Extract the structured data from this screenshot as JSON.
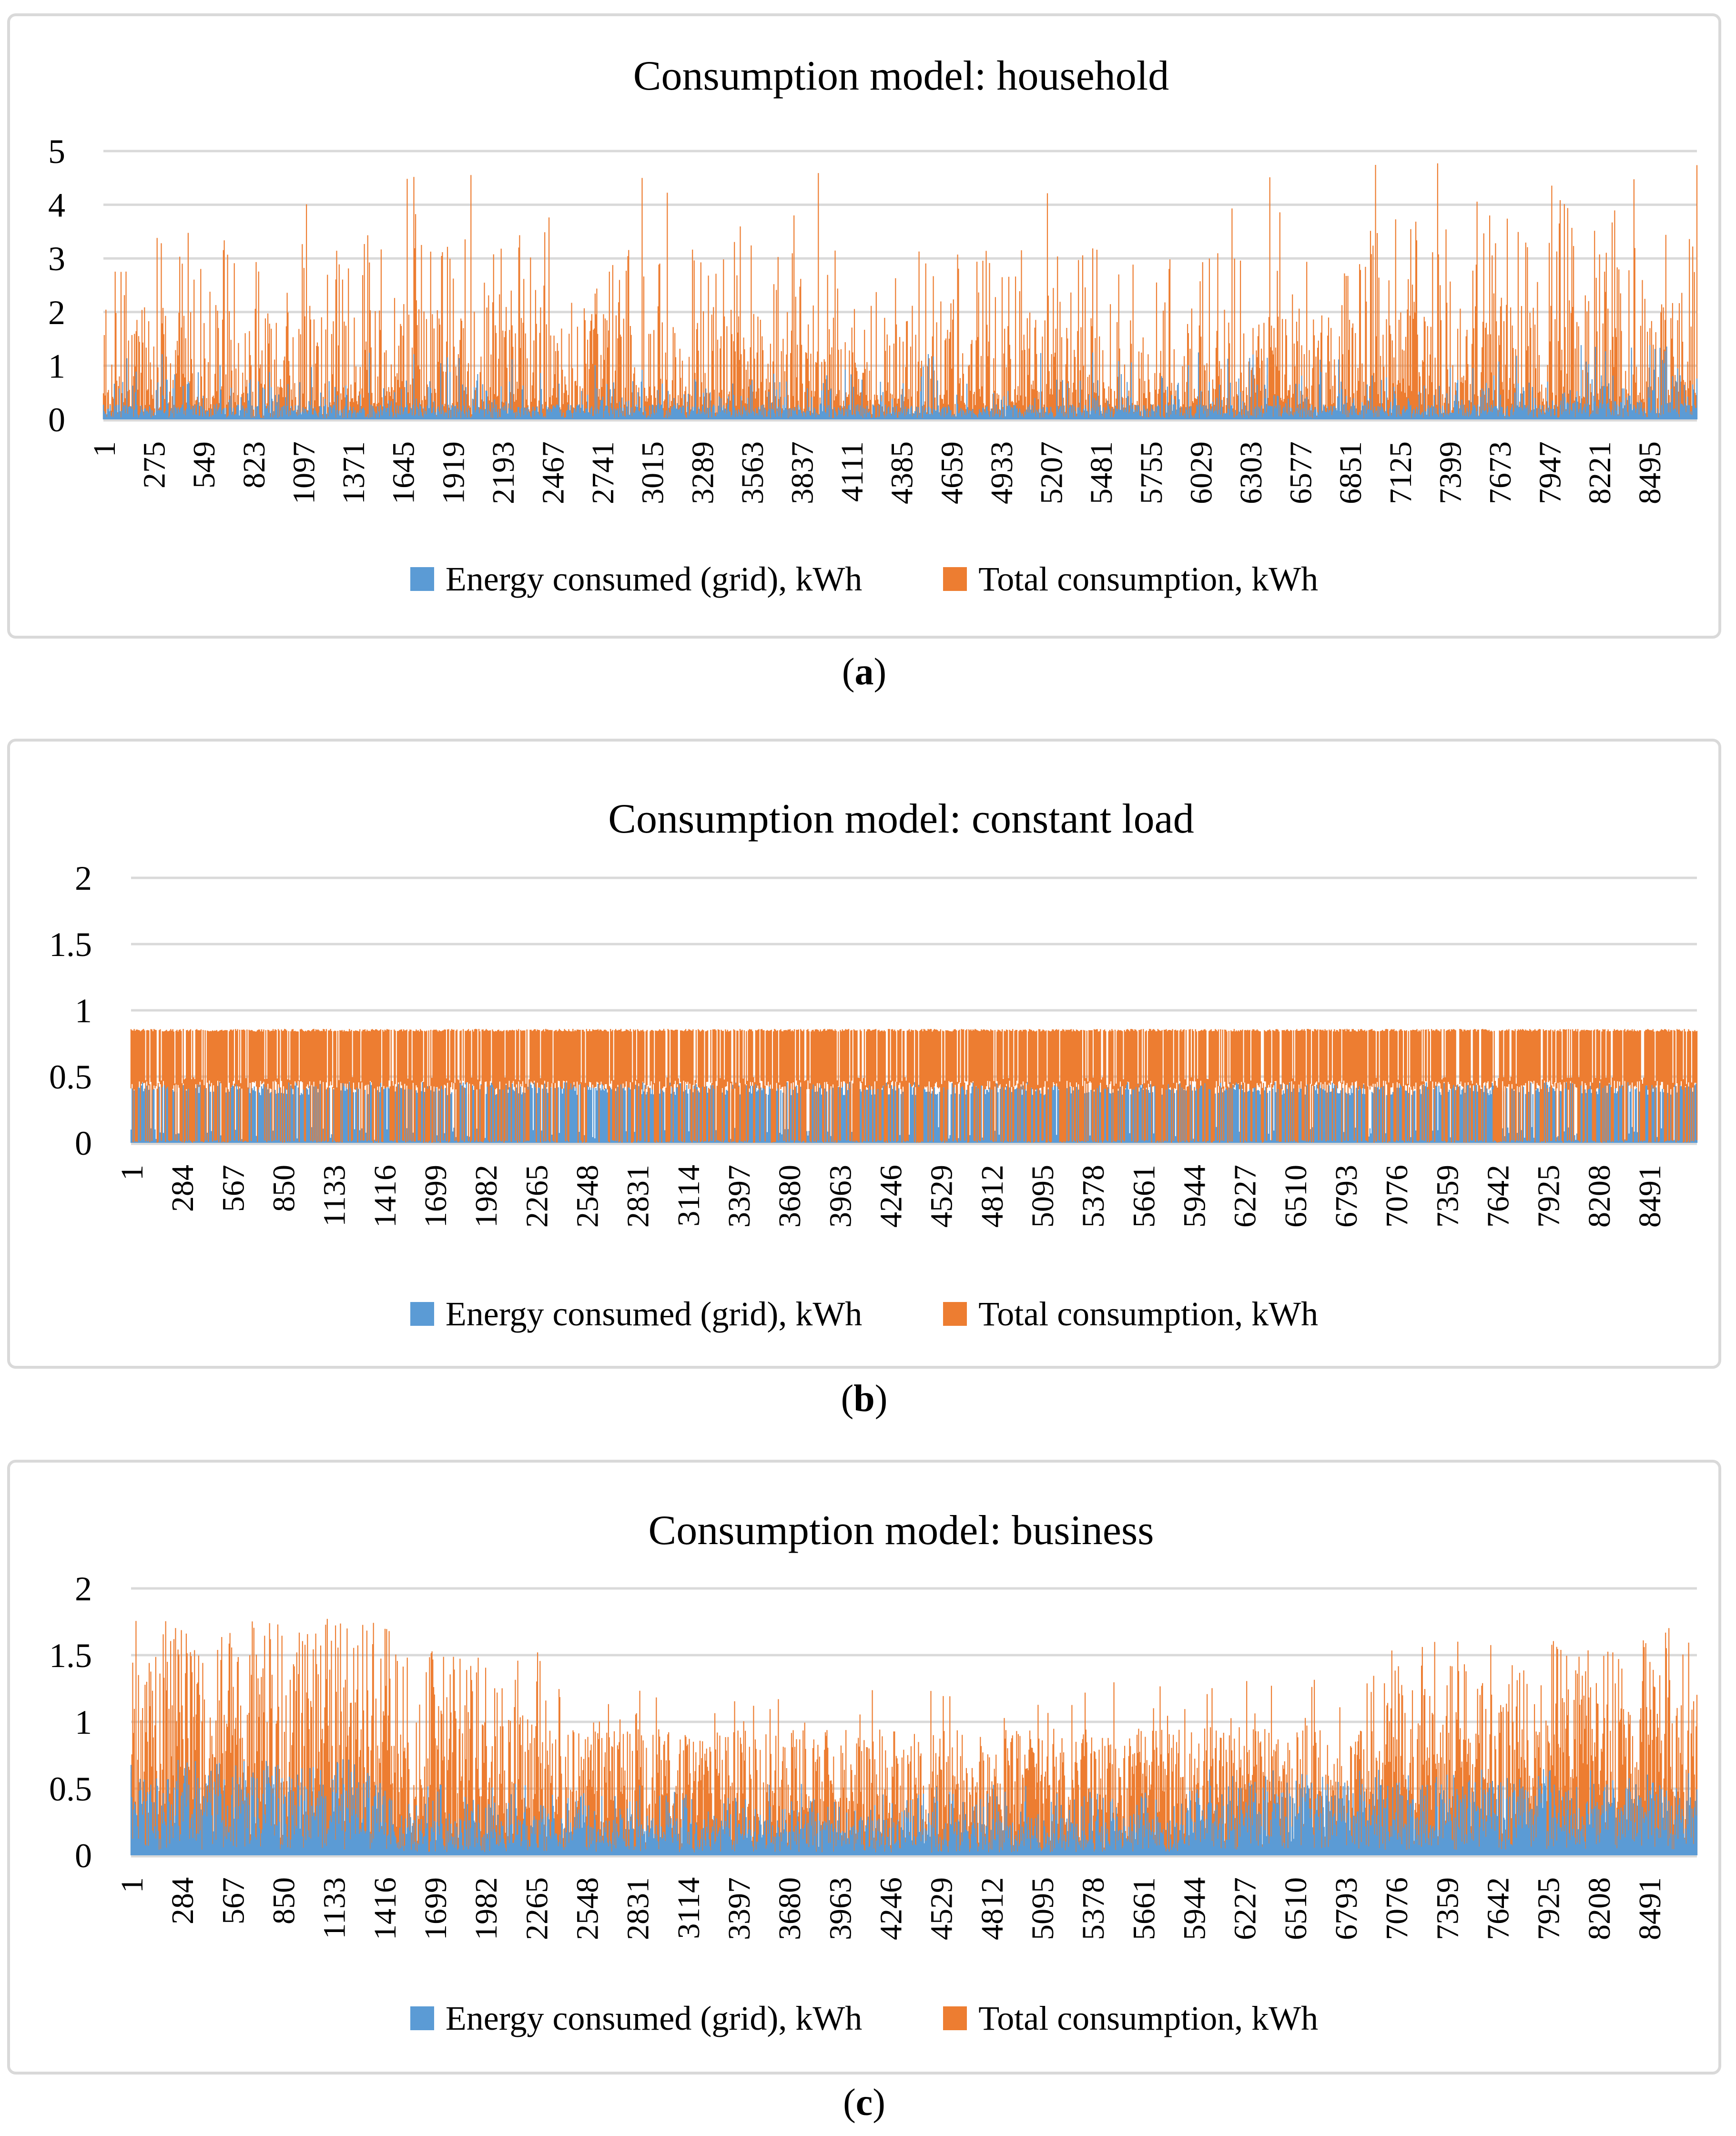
{
  "colors": {
    "blue": "#5B9BD5",
    "orange": "#ED7D31",
    "gridline": "#D9D9D9",
    "axis_line": "#D9D9D9",
    "panel_border": "#D9D9D9",
    "text": "#000000"
  },
  "legend": {
    "series1": "Energy consumed (grid), kWh",
    "series2": "Total consumption, kWh"
  },
  "chart_data": [
    {
      "type": "line",
      "title": "Consumption model: household",
      "caption_open": "(",
      "caption_letter": "a",
      "caption_close": ")",
      "x_range": [
        1,
        8760
      ],
      "x_ticks": [
        1,
        275,
        549,
        823,
        1097,
        1371,
        1645,
        1919,
        2193,
        2467,
        2741,
        3015,
        3289,
        3563,
        3837,
        4111,
        4385,
        4659,
        4933,
        5207,
        5481,
        5755,
        6029,
        6303,
        6577,
        6851,
        7125,
        7399,
        7673,
        7947,
        8221,
        8495
      ],
      "y_ticks": [
        5,
        4,
        3,
        2,
        1,
        0
      ],
      "ylim": [
        0,
        5
      ],
      "grid": true,
      "legend_position": "bottom",
      "series": [
        {
          "name": "Energy consumed (grid), kWh",
          "color_key": "blue",
          "zorder": 2,
          "seed": 202,
          "summary": "hourly grid draw: dense noise 0-0.3 kWh with spikes to 0.7-1.4 kWh, slightly higher after hour 8000",
          "pattern": {
            "n": 1900,
            "segments": [
              {
                "until": 8000,
                "bands": [
                  [
                    0.8,
                    0.02,
                    0.28
                  ],
                  [
                    0.17,
                    0.28,
                    0.75
                  ],
                  [
                    0.03,
                    0.75,
                    1.25
                  ]
                ]
              },
              {
                "until": 8760,
                "bands": [
                  [
                    0.72,
                    0.03,
                    0.35
                  ],
                  [
                    0.22,
                    0.35,
                    0.85
                  ],
                  [
                    0.06,
                    0.85,
                    1.4
                  ]
                ]
              }
            ]
          }
        },
        {
          "name": "Total consumption, kWh",
          "color_key": "orange",
          "zorder": 1,
          "seed": 101,
          "summary": "hourly total load: base 0-0.6 kWh, frequent peaks 0.6-2.2, regular peaks 2-3.6, rare maxima 3.7-5.0 kWh; tall peaks denser before hour 3600 and after hour 6900",
          "pattern": {
            "n": 1900,
            "segments": [
              {
                "until": 3600,
                "bands": [
                  [
                    0.5,
                    0.05,
                    0.62
                  ],
                  [
                    0.36,
                    0.62,
                    2.1
                  ],
                  [
                    0.125,
                    2.1,
                    3.6
                  ],
                  [
                    0.015,
                    3.7,
                    5.0
                  ]
                ]
              },
              {
                "until": 6900,
                "bands": [
                  [
                    0.54,
                    0.05,
                    0.58
                  ],
                  [
                    0.35,
                    0.58,
                    1.9
                  ],
                  [
                    0.1,
                    1.9,
                    3.2
                  ],
                  [
                    0.01,
                    3.3,
                    5.0
                  ]
                ]
              },
              {
                "until": 8760,
                "bands": [
                  [
                    0.46,
                    0.05,
                    0.7
                  ],
                  [
                    0.37,
                    0.7,
                    2.2
                  ],
                  [
                    0.15,
                    2.2,
                    3.9
                  ],
                  [
                    0.025,
                    3.9,
                    5.0
                  ]
                ]
              }
            ]
          }
        }
      ]
    },
    {
      "type": "line",
      "title": "Consumption model: constant load",
      "caption_open": "(",
      "caption_letter": "b",
      "caption_close": ")",
      "x_range": [
        1,
        8760
      ],
      "x_ticks": [
        1,
        284,
        567,
        850,
        1133,
        1416,
        1699,
        1982,
        2265,
        2548,
        2831,
        3114,
        3397,
        3680,
        3963,
        4246,
        4529,
        4812,
        5095,
        5378,
        5661,
        5944,
        6227,
        6510,
        6793,
        7076,
        7359,
        7642,
        7925,
        8208,
        8491
      ],
      "y_ticks": [
        2,
        1.5,
        1,
        0.5,
        0
      ],
      "ylim": [
        0,
        2
      ],
      "grid": true,
      "legend_position": "bottom",
      "series": [
        {
          "name": "Energy consumed (grid), kWh",
          "color_key": "blue",
          "zorder": 1,
          "seed": 303,
          "summary": "grid draw nearly constant ~0.36-0.46 kWh every hour with occasional dips toward 0",
          "pattern": {
            "n": 1500,
            "segments": [
              {
                "until": 8760,
                "bands": [
                  [
                    0.86,
                    0.36,
                    0.46
                  ],
                  [
                    0.14,
                    0.02,
                    0.12
                  ]
                ]
              }
            ]
          }
        },
        {
          "name": "Total consumption, kWh",
          "color_key": "orange",
          "zorder": 2,
          "seed": 404,
          "summary": "total load oscillates between ~0.42 and a flat ceiling of ~0.85 kWh for the whole year",
          "pattern": {
            "n": 1500,
            "segments": [
              {
                "until": 8760,
                "bands": [
                  [
                    0.55,
                    0.84,
                    0.86,
                    0.4,
                    0.47
                  ],
                  [
                    0.3,
                    0.84,
                    0.86,
                    0.0,
                    0.02
                  ],
                  [
                    0.15,
                    0.4,
                    0.5,
                    0.0,
                    0.02
                  ]
                ]
              }
            ]
          }
        }
      ]
    },
    {
      "type": "line",
      "title": "Consumption model: business",
      "caption_open": "(",
      "caption_letter": "c",
      "caption_close": ")",
      "x_range": [
        1,
        8760
      ],
      "x_ticks": [
        1,
        284,
        567,
        850,
        1133,
        1416,
        1699,
        1982,
        2265,
        2548,
        2831,
        3114,
        3397,
        3680,
        3963,
        4246,
        4529,
        4812,
        5095,
        5378,
        5661,
        5944,
        6227,
        6510,
        6793,
        7076,
        7359,
        7642,
        7925,
        8208,
        8491
      ],
      "y_ticks": [
        2,
        1.5,
        1,
        0.5,
        0
      ],
      "ylim": [
        0,
        2
      ],
      "grid": true,
      "legend_position": "bottom",
      "series": [
        {
          "name": "Total consumption, kWh",
          "color_key": "orange",
          "zorder": 1,
          "seed": 505,
          "summary": "business load: peaks 1.2-1.78 kWh through hour ~1450, tapering to regular 0.55-0.95 peaks (rare 1.3) mid-year, rising again to 0.7-1.6 (max ~1.78) after hour ~7000",
          "pattern": {
            "n": 1900,
            "segments": [
              {
                "until": 1450,
                "bands": [
                  [
                    0.38,
                    0.1,
                    0.7
                  ],
                  [
                    0.34,
                    0.7,
                    1.25
                  ],
                  [
                    0.28,
                    1.25,
                    1.78
                  ]
                ]
              },
              {
                "until": 2300,
                "bands": [
                  [
                    0.45,
                    0.08,
                    0.6
                  ],
                  [
                    0.38,
                    0.6,
                    1.05
                  ],
                  [
                    0.17,
                    1.05,
                    1.55
                  ]
                ]
              },
              {
                "until": 5900,
                "bands": [
                  [
                    0.52,
                    0.05,
                    0.55
                  ],
                  [
                    0.43,
                    0.55,
                    0.95
                  ],
                  [
                    0.05,
                    0.95,
                    1.3
                  ]
                ]
              },
              {
                "until": 7000,
                "bands": [
                  [
                    0.5,
                    0.05,
                    0.55
                  ],
                  [
                    0.44,
                    0.55,
                    0.97
                  ],
                  [
                    0.06,
                    0.97,
                    1.35
                  ]
                ]
              },
              {
                "until": 8760,
                "bands": [
                  [
                    0.4,
                    0.1,
                    0.68
                  ],
                  [
                    0.4,
                    0.68,
                    1.15
                  ],
                  [
                    0.19,
                    1.15,
                    1.62
                  ],
                  [
                    0.01,
                    1.62,
                    1.78
                  ]
                ]
              }
            ]
          }
        },
        {
          "name": "Energy consumed (grid), kWh",
          "color_key": "blue",
          "zorder": 2,
          "seed": 606,
          "summary": "grid draw: dense 0-0.7 kWh early in the year, low 0-0.5 mid-year, 0-0.65 late in the year",
          "pattern": {
            "n": 1900,
            "segments": [
              {
                "until": 1450,
                "bands": [
                  [
                    0.62,
                    0.04,
                    0.42
                  ],
                  [
                    0.3,
                    0.42,
                    0.62
                  ],
                  [
                    0.08,
                    0.62,
                    0.72
                  ]
                ]
              },
              {
                "until": 5900,
                "bands": [
                  [
                    0.8,
                    0.02,
                    0.28
                  ],
                  [
                    0.18,
                    0.28,
                    0.48
                  ],
                  [
                    0.02,
                    0.48,
                    0.55
                  ]
                ]
              },
              {
                "until": 8760,
                "bands": [
                  [
                    0.66,
                    0.04,
                    0.38
                  ],
                  [
                    0.3,
                    0.38,
                    0.55
                  ],
                  [
                    0.04,
                    0.55,
                    0.65
                  ]
                ]
              }
            ]
          }
        }
      ]
    }
  ]
}
